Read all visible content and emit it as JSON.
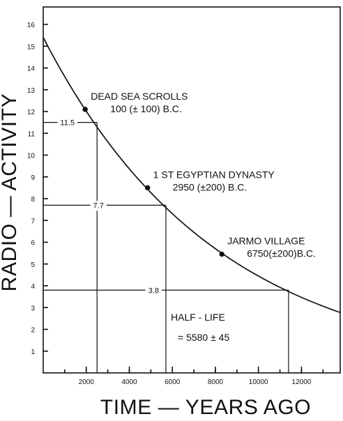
{
  "chart_data": {
    "type": "line",
    "xlabel": "TIME — YEARS AGO",
    "ylabel": "RADIO — ACTIVITY",
    "xlim": [
      0,
      13800
    ],
    "ylim": [
      0,
      16.8
    ],
    "grid": false,
    "x_ticks": [
      2000,
      4000,
      6000,
      8000,
      10000,
      12000
    ],
    "y_ticks": [
      1,
      2,
      3,
      4,
      5,
      6,
      7,
      8,
      9,
      10,
      11,
      12,
      13,
      14,
      15,
      16
    ],
    "x_minor_step": 1000,
    "series": [
      {
        "half_life_years": 5580,
        "initial_value": 15.4
      }
    ],
    "points": [
      {
        "name": "dead-sea-scrolls",
        "x": 1950,
        "y": 12.1,
        "label_line1": "DEAD SEA SCROLLS",
        "label_line2": "100 (± 100) B.C."
      },
      {
        "name": "first-egyptian-dynasty",
        "x": 4850,
        "y": 8.5,
        "label_line1": "1 ST EGYPTIAN DYNASTY",
        "label_line2": "2950 (±200) B.C."
      },
      {
        "name": "jarmo-village",
        "x": 8300,
        "y": 5.45,
        "label_line1": "JARMO VILLAGE",
        "label_line2": "6750(±200)B.C."
      }
    ],
    "reference_lines": [
      {
        "name": "ref-11-5",
        "y": 11.5,
        "x": 2500,
        "label": "11.5"
      },
      {
        "name": "ref-7-7",
        "y": 7.7,
        "x": 5700,
        "label": "7.7"
      },
      {
        "name": "ref-3-8",
        "y": 3.8,
        "x": 11400,
        "label": "3.8"
      }
    ],
    "annotations": [
      {
        "name": "half-life-annotation",
        "line1": "HALF - LIFE",
        "line2": "= 5580 ± 45"
      }
    ]
  }
}
